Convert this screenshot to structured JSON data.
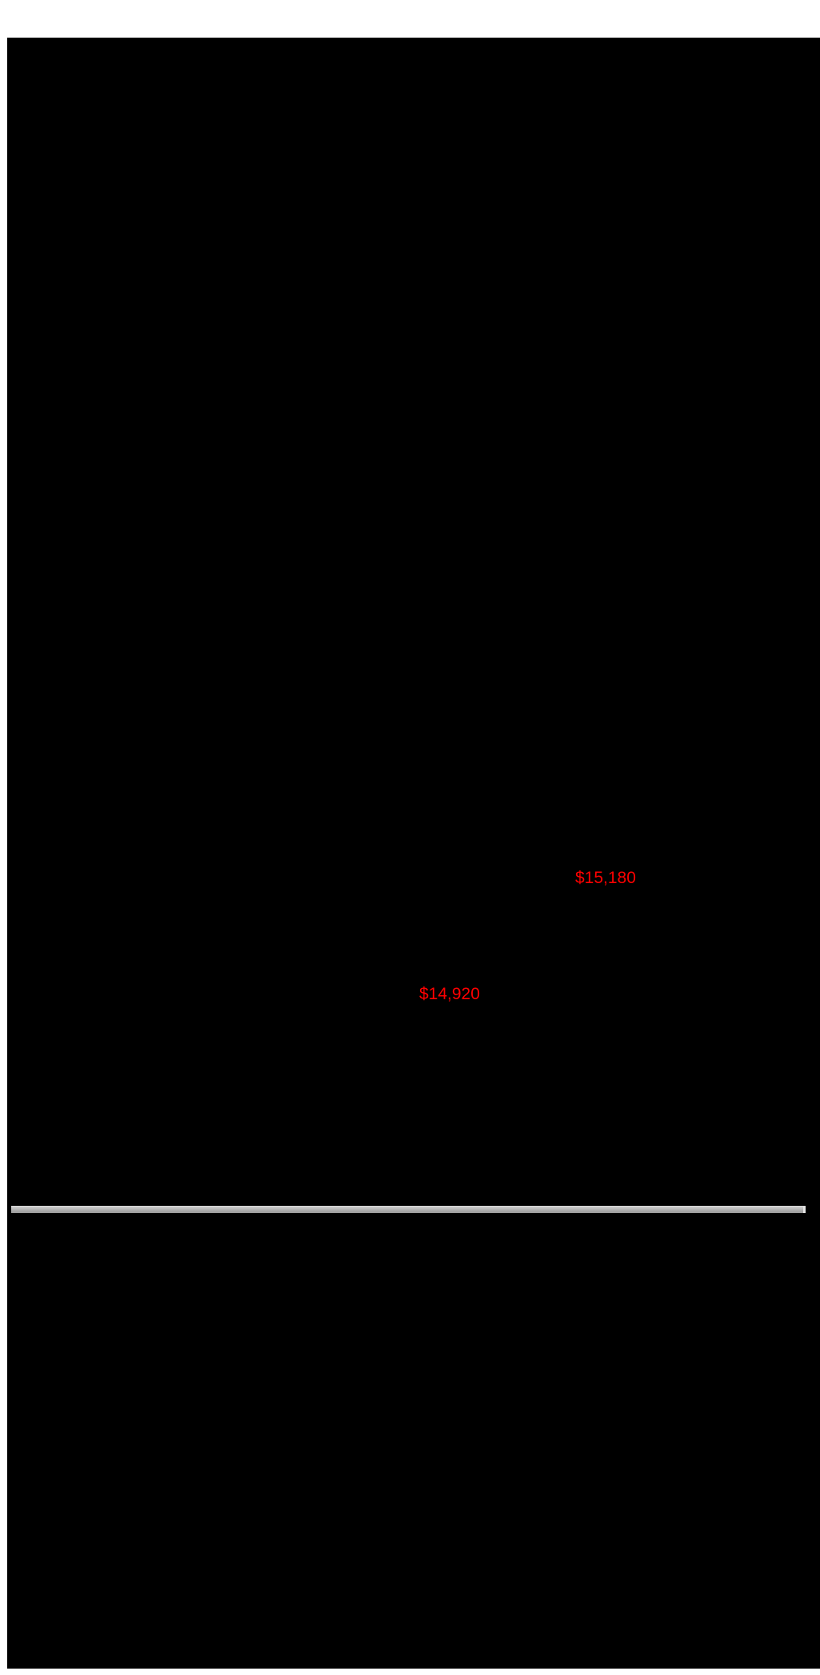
{
  "canvas": {
    "background_color": "#000000",
    "page_background_color": "#ffffff"
  },
  "price_labels": [
    {
      "text": "$15,180",
      "color": "#ff0000"
    },
    {
      "text": "$14,920",
      "color": "#ff0000"
    }
  ],
  "scrollbar": {
    "track_color_top": "#cccccc",
    "track_color_bottom": "#9d9d9d",
    "end_cap_color": "#e4e4e4"
  },
  "prices": {
    "values": [
      15180,
      14920
    ],
    "currency_symbol": "$"
  }
}
